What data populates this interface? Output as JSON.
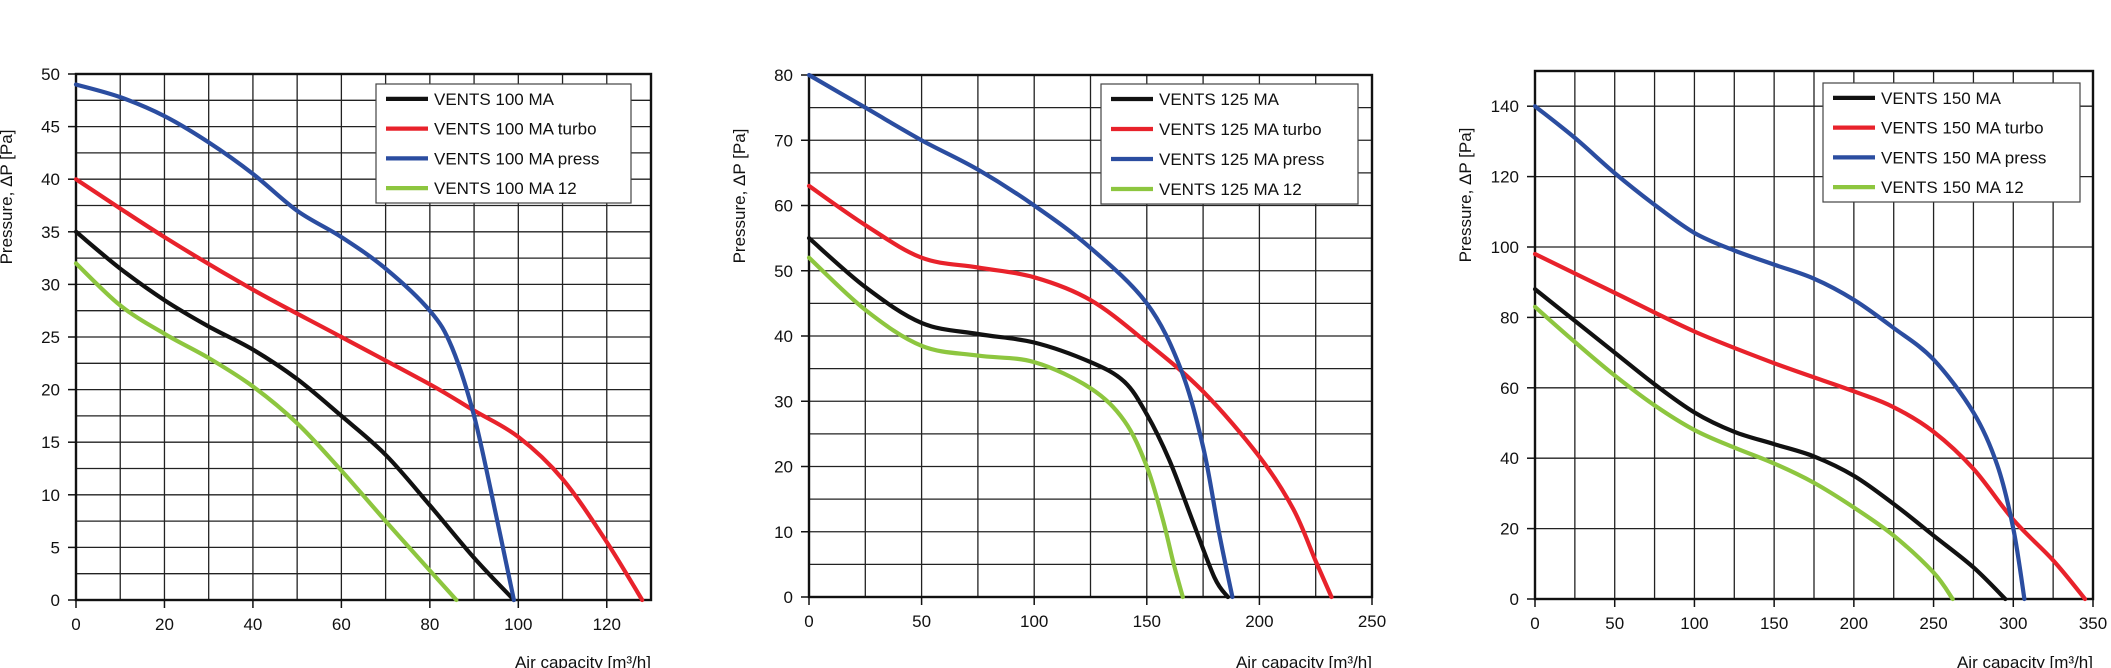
{
  "chart_data": [
    {
      "type": "line",
      "xlabel": "Air capacity [m³/h]",
      "ylabel": "Pressure, ΔP [Pa]",
      "xlim": [
        0,
        130
      ],
      "ylim": [
        0,
        50
      ],
      "xticks": [
        0,
        20,
        40,
        60,
        80,
        100,
        120
      ],
      "yticks": [
        0,
        5,
        10,
        15,
        20,
        25,
        30,
        35,
        40,
        45,
        50
      ],
      "grid": true,
      "legend": "top-right",
      "series": [
        {
          "name": "VENTS 100 MA",
          "color": "#111111",
          "x": [
            0,
            10,
            20,
            30,
            40,
            50,
            60,
            70,
            80,
            90,
            99
          ],
          "y": [
            35,
            31.5,
            28.5,
            26,
            23.8,
            21,
            17.5,
            13.8,
            9,
            4,
            0
          ]
        },
        {
          "name": "VENTS 100 MA turbo",
          "color": "#e8222b",
          "x": [
            0,
            20,
            40,
            60,
            80,
            90,
            100,
            110,
            120,
            128
          ],
          "y": [
            40,
            34.5,
            29.5,
            25,
            20.5,
            18,
            15.5,
            11.5,
            5.5,
            0
          ]
        },
        {
          "name": "VENTS 100 MA press",
          "color": "#2b4da0",
          "x": [
            0,
            10,
            20,
            30,
            40,
            50,
            60,
            70,
            80,
            85,
            90,
            95,
            99
          ],
          "y": [
            49,
            47.8,
            46,
            43.5,
            40.5,
            37,
            34.5,
            31.5,
            27.5,
            24,
            17.5,
            8,
            0
          ]
        },
        {
          "name": "VENTS 100 MA 12",
          "color": "#8dc63f",
          "x": [
            0,
            10,
            20,
            30,
            40,
            50,
            60,
            70,
            80,
            86
          ],
          "y": [
            32,
            28,
            25.3,
            23,
            20.3,
            16.8,
            12.3,
            7.5,
            2.8,
            0
          ]
        }
      ]
    },
    {
      "type": "line",
      "xlabel": "Air capacity [m³/h]",
      "ylabel": "Pressure, ΔP [Pa]",
      "xlim": [
        0,
        250
      ],
      "ylim": [
        0,
        80
      ],
      "xticks": [
        0,
        50,
        100,
        150,
        200,
        250
      ],
      "yticks": [
        0,
        10,
        20,
        30,
        40,
        50,
        60,
        70,
        80
      ],
      "grid": true,
      "legend": "top-right",
      "series": [
        {
          "name": "VENTS 125 MA",
          "color": "#111111",
          "x": [
            0,
            25,
            50,
            75,
            100,
            125,
            140,
            150,
            160,
            170,
            180,
            186
          ],
          "y": [
            55,
            47.5,
            42,
            40.3,
            39,
            36,
            33,
            28,
            21,
            12,
            3,
            0
          ]
        },
        {
          "name": "VENTS 125 MA turbo",
          "color": "#e8222b",
          "x": [
            0,
            25,
            50,
            75,
            100,
            125,
            150,
            175,
            200,
            215,
            225,
            232
          ],
          "y": [
            63,
            57,
            52,
            50.5,
            49,
            45.5,
            39,
            31.5,
            21.5,
            13.5,
            5.5,
            0
          ]
        },
        {
          "name": "VENTS 125 MA press",
          "color": "#2b4da0",
          "x": [
            0,
            25,
            50,
            75,
            100,
            125,
            150,
            165,
            175,
            182,
            188
          ],
          "y": [
            80,
            75,
            70,
            65.5,
            60,
            53.5,
            45,
            35,
            23,
            10,
            0
          ]
        },
        {
          "name": "VENTS 125 MA  12",
          "color": "#8dc63f",
          "x": [
            0,
            25,
            50,
            75,
            100,
            125,
            140,
            150,
            157,
            162,
            166
          ],
          "y": [
            52,
            44,
            38.5,
            37,
            36,
            32,
            27,
            20,
            12,
            5,
            0
          ]
        }
      ]
    },
    {
      "type": "line",
      "xlabel": "Air capacity [m³/h]",
      "ylabel": "Pressure, ΔP [Pa]",
      "xlim": [
        0,
        350
      ],
      "ylim": [
        0,
        150
      ],
      "xticks": [
        0,
        50,
        100,
        150,
        200,
        250,
        300,
        350
      ],
      "yticks": [
        0,
        20,
        40,
        60,
        80,
        100,
        120,
        140
      ],
      "grid": true,
      "legend": "top-right",
      "series": [
        {
          "name": "VENTS 150 MA",
          "color": "#111111",
          "x": [
            0,
            25,
            50,
            75,
            100,
            125,
            150,
            175,
            200,
            225,
            250,
            275,
            295
          ],
          "y": [
            88,
            79,
            70,
            61,
            53,
            47.5,
            44,
            40.5,
            35,
            27,
            18,
            9,
            0
          ]
        },
        {
          "name": "VENTS 150 MA turbo",
          "color": "#e8222b",
          "x": [
            0,
            50,
            100,
            150,
            200,
            225,
            250,
            275,
            300,
            325,
            345
          ],
          "y": [
            98,
            87,
            76,
            67,
            59,
            54.5,
            47.5,
            37,
            22.5,
            11,
            0
          ]
        },
        {
          "name": "VENTS 150 MA press",
          "color": "#2b4da0",
          "x": [
            0,
            25,
            50,
            75,
            100,
            125,
            150,
            175,
            200,
            225,
            250,
            275,
            290,
            300,
            307
          ],
          "y": [
            140,
            131,
            121,
            112,
            104,
            99,
            95,
            91,
            85,
            77,
            68,
            53,
            38,
            20,
            0
          ]
        },
        {
          "name": "VENTS 150 MA  12",
          "color": "#8dc63f",
          "x": [
            0,
            25,
            50,
            75,
            100,
            125,
            150,
            175,
            200,
            225,
            250,
            262
          ],
          "y": [
            83,
            73,
            63.5,
            55,
            48,
            43,
            38.5,
            33,
            26,
            18,
            7.5,
            0
          ]
        }
      ]
    }
  ]
}
